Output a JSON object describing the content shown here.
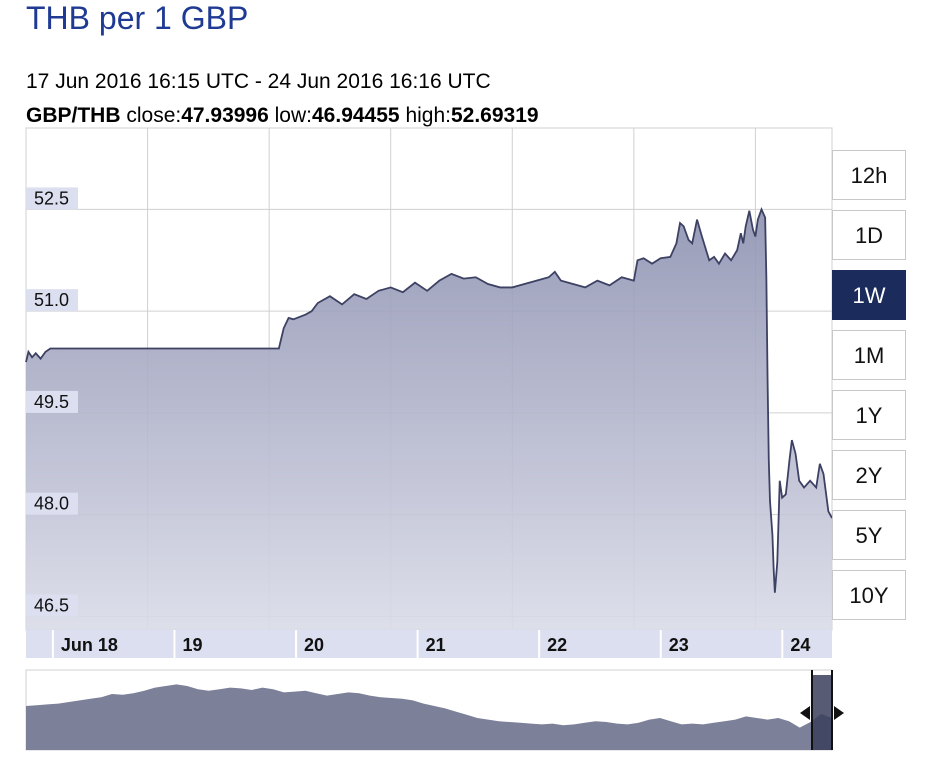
{
  "header": {
    "title": "THB per 1 GBP",
    "range": "17 Jun 2016 16:15 UTC - 24 Jun 2016 16:16 UTC",
    "pair": "GBP/THB",
    "close_label": "close:",
    "close": "47.93996",
    "low_label": "low:",
    "low": "46.94455",
    "high_label": "high:",
    "high": "52.69319"
  },
  "range_buttons": [
    {
      "label": "12h",
      "active": false
    },
    {
      "label": "1D",
      "active": false
    },
    {
      "label": "1W",
      "active": true
    },
    {
      "label": "1M",
      "active": false
    },
    {
      "label": "1Y",
      "active": false
    },
    {
      "label": "2Y",
      "active": false
    },
    {
      "label": "5Y",
      "active": false
    },
    {
      "label": "10Y",
      "active": false
    }
  ],
  "colors": {
    "area_fill": "#9ea2bd",
    "line": "#3d4163",
    "grid": "#d0d0d0",
    "tick_bg": "#dcdff0",
    "title": "#1f3a93",
    "active_button": "#1b2b5c",
    "navigator_fill": "#7c8099"
  },
  "chart_data": {
    "type": "area",
    "pair": "GBP/THB",
    "x_unit": "days since 17 Jun 2016 16:15 UTC",
    "x_tick_labels": [
      "Jun 18",
      "19",
      "20",
      "21",
      "22",
      "23",
      "24"
    ],
    "y_tick_labels": [
      "46.5",
      "48.0",
      "49.5",
      "51.0",
      "52.5"
    ],
    "ylim": [
      46.3,
      53.7
    ],
    "grid": true,
    "series": [
      {
        "name": "GBP/THB",
        "points": [
          [
            0.0,
            50.25
          ],
          [
            0.02,
            50.4
          ],
          [
            0.05,
            50.32
          ],
          [
            0.08,
            50.38
          ],
          [
            0.12,
            50.3
          ],
          [
            0.16,
            50.4
          ],
          [
            0.2,
            50.45
          ],
          [
            0.3,
            50.45
          ],
          [
            1.0,
            50.45
          ],
          [
            1.5,
            50.45
          ],
          [
            2.0,
            50.45
          ],
          [
            2.08,
            50.45
          ],
          [
            2.12,
            50.75
          ],
          [
            2.16,
            50.9
          ],
          [
            2.2,
            50.88
          ],
          [
            2.3,
            50.95
          ],
          [
            2.35,
            51.0
          ],
          [
            2.4,
            51.12
          ],
          [
            2.5,
            51.22
          ],
          [
            2.6,
            51.1
          ],
          [
            2.7,
            51.25
          ],
          [
            2.8,
            51.18
          ],
          [
            2.9,
            51.3
          ],
          [
            3.0,
            51.35
          ],
          [
            3.1,
            51.28
          ],
          [
            3.2,
            51.42
          ],
          [
            3.3,
            51.3
          ],
          [
            3.4,
            51.45
          ],
          [
            3.5,
            51.55
          ],
          [
            3.6,
            51.48
          ],
          [
            3.7,
            51.5
          ],
          [
            3.8,
            51.4
          ],
          [
            3.9,
            51.35
          ],
          [
            4.0,
            51.35
          ],
          [
            4.1,
            51.4
          ],
          [
            4.2,
            51.45
          ],
          [
            4.3,
            51.5
          ],
          [
            4.35,
            51.58
          ],
          [
            4.4,
            51.45
          ],
          [
            4.5,
            51.4
          ],
          [
            4.6,
            51.35
          ],
          [
            4.7,
            51.45
          ],
          [
            4.8,
            51.38
          ],
          [
            4.9,
            51.5
          ],
          [
            5.0,
            51.45
          ],
          [
            5.03,
            51.75
          ],
          [
            5.08,
            51.78
          ],
          [
            5.15,
            51.7
          ],
          [
            5.22,
            51.78
          ],
          [
            5.3,
            51.8
          ],
          [
            5.35,
            52.0
          ],
          [
            5.38,
            52.3
          ],
          [
            5.41,
            52.25
          ],
          [
            5.45,
            52.05
          ],
          [
            5.48,
            52.0
          ],
          [
            5.52,
            52.35
          ],
          [
            5.56,
            52.1
          ],
          [
            5.62,
            51.75
          ],
          [
            5.66,
            51.8
          ],
          [
            5.7,
            51.7
          ],
          [
            5.75,
            51.85
          ],
          [
            5.8,
            51.75
          ],
          [
            5.85,
            51.9
          ],
          [
            5.88,
            52.15
          ],
          [
            5.9,
            52.0
          ],
          [
            5.92,
            52.25
          ],
          [
            5.95,
            52.48
          ],
          [
            5.98,
            52.2
          ],
          [
            6.0,
            52.1
          ],
          [
            6.02,
            52.35
          ],
          [
            6.05,
            52.5
          ],
          [
            6.08,
            52.38
          ],
          [
            6.09,
            51.5
          ],
          [
            6.1,
            50.0
          ],
          [
            6.11,
            48.8
          ],
          [
            6.12,
            48.2
          ],
          [
            6.14,
            47.7
          ],
          [
            6.15,
            47.2
          ],
          [
            6.16,
            46.85
          ],
          [
            6.18,
            47.3
          ],
          [
            6.2,
            48.5
          ],
          [
            6.22,
            48.25
          ],
          [
            6.25,
            48.3
          ],
          [
            6.28,
            48.8
          ],
          [
            6.3,
            49.1
          ],
          [
            6.33,
            48.9
          ],
          [
            6.36,
            48.5
          ],
          [
            6.4,
            48.4
          ],
          [
            6.45,
            48.5
          ],
          [
            6.5,
            48.4
          ],
          [
            6.53,
            48.75
          ],
          [
            6.56,
            48.6
          ],
          [
            6.6,
            48.05
          ],
          [
            6.63,
            47.95
          ]
        ]
      }
    ],
    "x_ticks_at": [
      0.32,
      1.32,
      2.32,
      3.32,
      4.32,
      5.32,
      6.32
    ],
    "y_ticks_at": [
      46.5,
      48.0,
      49.5,
      51.0,
      52.5
    ],
    "navigator": {
      "values": [
        0.55,
        0.56,
        0.57,
        0.58,
        0.6,
        0.62,
        0.64,
        0.66,
        0.7,
        0.69,
        0.71,
        0.74,
        0.78,
        0.8,
        0.82,
        0.8,
        0.76,
        0.74,
        0.76,
        0.78,
        0.77,
        0.75,
        0.78,
        0.76,
        0.72,
        0.73,
        0.74,
        0.71,
        0.68,
        0.7,
        0.72,
        0.71,
        0.68,
        0.66,
        0.65,
        0.64,
        0.62,
        0.58,
        0.55,
        0.52,
        0.48,
        0.44,
        0.4,
        0.38,
        0.36,
        0.35,
        0.34,
        0.33,
        0.32,
        0.33,
        0.31,
        0.32,
        0.34,
        0.36,
        0.35,
        0.33,
        0.32,
        0.34,
        0.38,
        0.4,
        0.36,
        0.32,
        0.33,
        0.32,
        0.34,
        0.36,
        0.38,
        0.42,
        0.4,
        0.38,
        0.4,
        0.36,
        0.28,
        0.35,
        0.45,
        0.4
      ]
    }
  }
}
